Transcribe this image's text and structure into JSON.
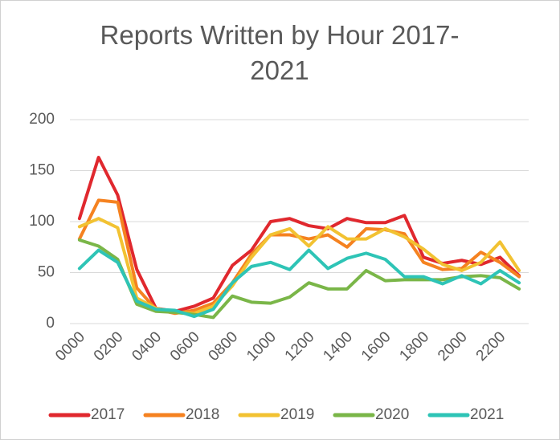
{
  "chart_data": {
    "type": "line",
    "title": "Reports Written by Hour 2017-2021",
    "categories": [
      "0000",
      null,
      "0200",
      null,
      "0400",
      null,
      "0600",
      null,
      "0800",
      null,
      "1000",
      null,
      "1200",
      null,
      "1400",
      null,
      "1600",
      null,
      "1800",
      null,
      "2000",
      null,
      "2200",
      null
    ],
    "series": [
      {
        "name": "2017",
        "color": "#e0282e",
        "values": [
          103,
          163,
          126,
          53,
          15,
          12,
          17,
          25,
          57,
          72,
          100,
          103,
          96,
          93,
          103,
          99,
          99,
          106,
          65,
          59,
          62,
          58,
          65,
          47
        ]
      },
      {
        "name": "2018",
        "color": "#f58220",
        "values": [
          83,
          121,
          119,
          35,
          14,
          10,
          13,
          20,
          40,
          68,
          87,
          87,
          83,
          87,
          75,
          93,
          92,
          88,
          60,
          53,
          54,
          70,
          60,
          46
        ]
      },
      {
        "name": "2019",
        "color": "#f2c232",
        "values": [
          95,
          103,
          94,
          25,
          15,
          11,
          10,
          17,
          37,
          65,
          87,
          93,
          76,
          95,
          83,
          83,
          93,
          85,
          73,
          58,
          52,
          60,
          80,
          52
        ]
      },
      {
        "name": "2020",
        "color": "#7ab648",
        "values": [
          82,
          76,
          63,
          19,
          12,
          11,
          9,
          6,
          27,
          21,
          20,
          26,
          40,
          34,
          34,
          52,
          42,
          43,
          43,
          43,
          46,
          47,
          45,
          34
        ]
      },
      {
        "name": "2021",
        "color": "#2ec4b6",
        "values": [
          54,
          72,
          60,
          22,
          14,
          13,
          7,
          14,
          40,
          56,
          60,
          53,
          72,
          54,
          64,
          69,
          63,
          46,
          46,
          39,
          47,
          39,
          52,
          40
        ]
      }
    ],
    "ylim": [
      0,
      200
    ],
    "yticks": [
      0,
      50,
      100,
      150,
      200
    ],
    "grid": true,
    "legend": "bottom"
  }
}
